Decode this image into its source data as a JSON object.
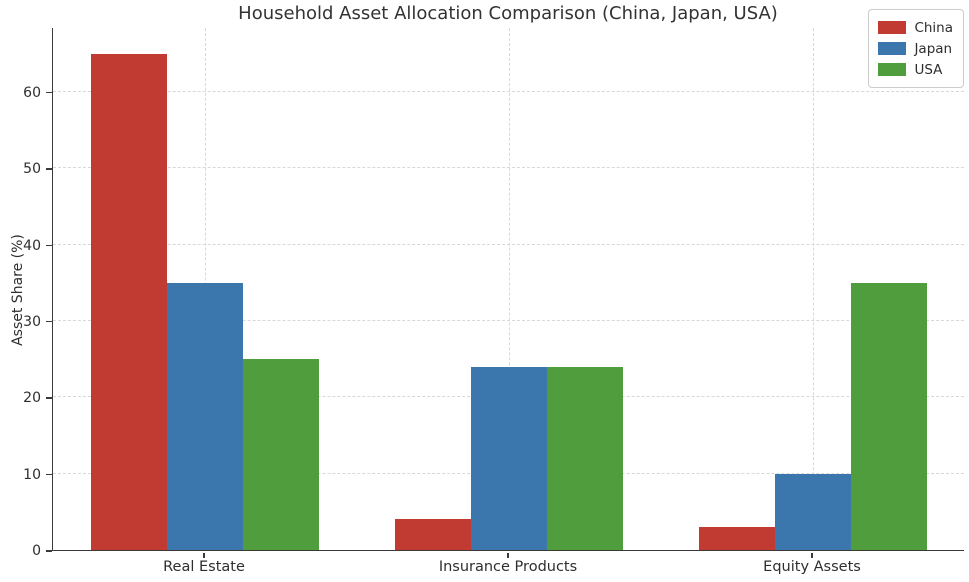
{
  "chart_data": {
    "type": "bar",
    "title": "Household Asset Allocation Comparison (China, Japan, USA)",
    "xlabel": "",
    "ylabel": "Asset Share (%)",
    "categories": [
      "Real Estate",
      "Insurance Products",
      "Equity Assets"
    ],
    "series": [
      {
        "name": "China",
        "color": "#c23b32",
        "values": [
          65,
          4,
          3
        ]
      },
      {
        "name": "Japan",
        "color": "#3b77ad",
        "values": [
          35,
          24,
          10
        ]
      },
      {
        "name": "USA",
        "color": "#4f9d3d",
        "values": [
          25,
          24,
          35
        ]
      }
    ],
    "yticks": [
      0,
      10,
      20,
      30,
      40,
      50,
      60
    ],
    "ylim": [
      0,
      68.5
    ],
    "bar_width_fraction": 0.25,
    "grid": "dashed-both-axes",
    "gridline_color": "#d8d8d8",
    "spine_color": "#3a3a3a",
    "legend_position": "upper-right"
  }
}
